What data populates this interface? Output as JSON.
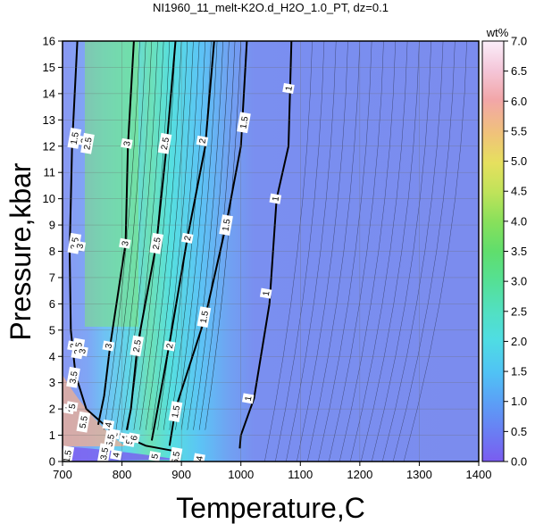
{
  "chart_data": {
    "type": "heatmap",
    "title": "NI1960_11_melt-K2O.d_H2O_1.0_PT, dz=0.1",
    "xlabel": "Temperature,C",
    "ylabel": "Pressure,kbar",
    "xlim": [
      700,
      1400
    ],
    "ylim": [
      0,
      16
    ],
    "x_ticks": [
      "700",
      "800",
      "900",
      "1000",
      "1100",
      "1200",
      "1300",
      "1400"
    ],
    "y_ticks": [
      "0",
      "1",
      "2",
      "3",
      "4",
      "5",
      "6",
      "7",
      "8",
      "9",
      "10",
      "11",
      "12",
      "13",
      "14",
      "15",
      "16"
    ],
    "grid": true,
    "colorbar": {
      "label": "wt%",
      "min": 0.0,
      "max": 7.0,
      "ticks": [
        "0.0",
        "0.5",
        "1.0",
        "1.5",
        "2.0",
        "2.5",
        "3.0",
        "3.5",
        "4.0",
        "4.5",
        "5.0",
        "5.5",
        "6.0",
        "6.5",
        "7.0"
      ]
    },
    "contour_labels": [
      {
        "text": "1",
        "x": 1080,
        "y": 14.2
      },
      {
        "text": "1",
        "x": 1058,
        "y": 10.0
      },
      {
        "text": "1",
        "x": 1042,
        "y": 6.4
      },
      {
        "text": "1",
        "x": 1012,
        "y": 2.4
      },
      {
        "text": "1.5",
        "x": 1005,
        "y": 12.9
      },
      {
        "text": "1.5",
        "x": 975,
        "y": 9.0
      },
      {
        "text": "1.5",
        "x": 938,
        "y": 5.5
      },
      {
        "text": "1.5",
        "x": 890,
        "y": 1.9
      },
      {
        "text": "2",
        "x": 935,
        "y": 12.2
      },
      {
        "text": "2",
        "x": 910,
        "y": 8.5
      },
      {
        "text": "2",
        "x": 880,
        "y": 4.4
      },
      {
        "text": "2.5",
        "x": 872,
        "y": 12.1
      },
      {
        "text": "2.5",
        "x": 858,
        "y": 8.3
      },
      {
        "text": "2.5",
        "x": 825,
        "y": 4.4
      },
      {
        "text": "3",
        "x": 808,
        "y": 12.1
      },
      {
        "text": "3",
        "x": 805,
        "y": 8.3
      },
      {
        "text": "3",
        "x": 777,
        "y": 4.4
      },
      {
        "text": "1.5",
        "x": 720,
        "y": 12.3
      },
      {
        "text": "2",
        "x": 736,
        "y": 12.2
      },
      {
        "text": "2.5",
        "x": 742,
        "y": 12.1
      },
      {
        "text": "2.5",
        "x": 720,
        "y": 8.3
      },
      {
        "text": "3",
        "x": 729,
        "y": 8.2
      },
      {
        "text": "2",
        "x": 718,
        "y": 4.4
      },
      {
        "text": "2.5",
        "x": 726,
        "y": 4.3
      },
      {
        "text": "3",
        "x": 733,
        "y": 4.2
      },
      {
        "text": "3.5",
        "x": 718,
        "y": 3.2
      },
      {
        "text": "4",
        "x": 710,
        "y": 2.0
      },
      {
        "text": "5",
        "x": 716,
        "y": 2.1
      },
      {
        "text": "5.5",
        "x": 735,
        "y": 1.5
      },
      {
        "text": "4",
        "x": 777,
        "y": 1.4
      },
      {
        "text": "5",
        "x": 787,
        "y": 1.05
      },
      {
        "text": "5.5",
        "x": 780,
        "y": 0.8
      },
      {
        "text": "4",
        "x": 805,
        "y": 0.9
      },
      {
        "text": "5",
        "x": 812,
        "y": 0.75
      },
      {
        "text": "6",
        "x": 820,
        "y": 0.9
      },
      {
        "text": "3.5",
        "x": 770,
        "y": 0.3
      },
      {
        "text": "4",
        "x": 790,
        "y": 0.25
      },
      {
        "text": "5",
        "x": 855,
        "y": 0.2
      },
      {
        "text": "5.5",
        "x": 890,
        "y": 0.15
      },
      {
        "text": "4",
        "x": 930,
        "y": 0.12
      },
      {
        "text": "1.5",
        "x": 708,
        "y": 0.2
      }
    ]
  }
}
